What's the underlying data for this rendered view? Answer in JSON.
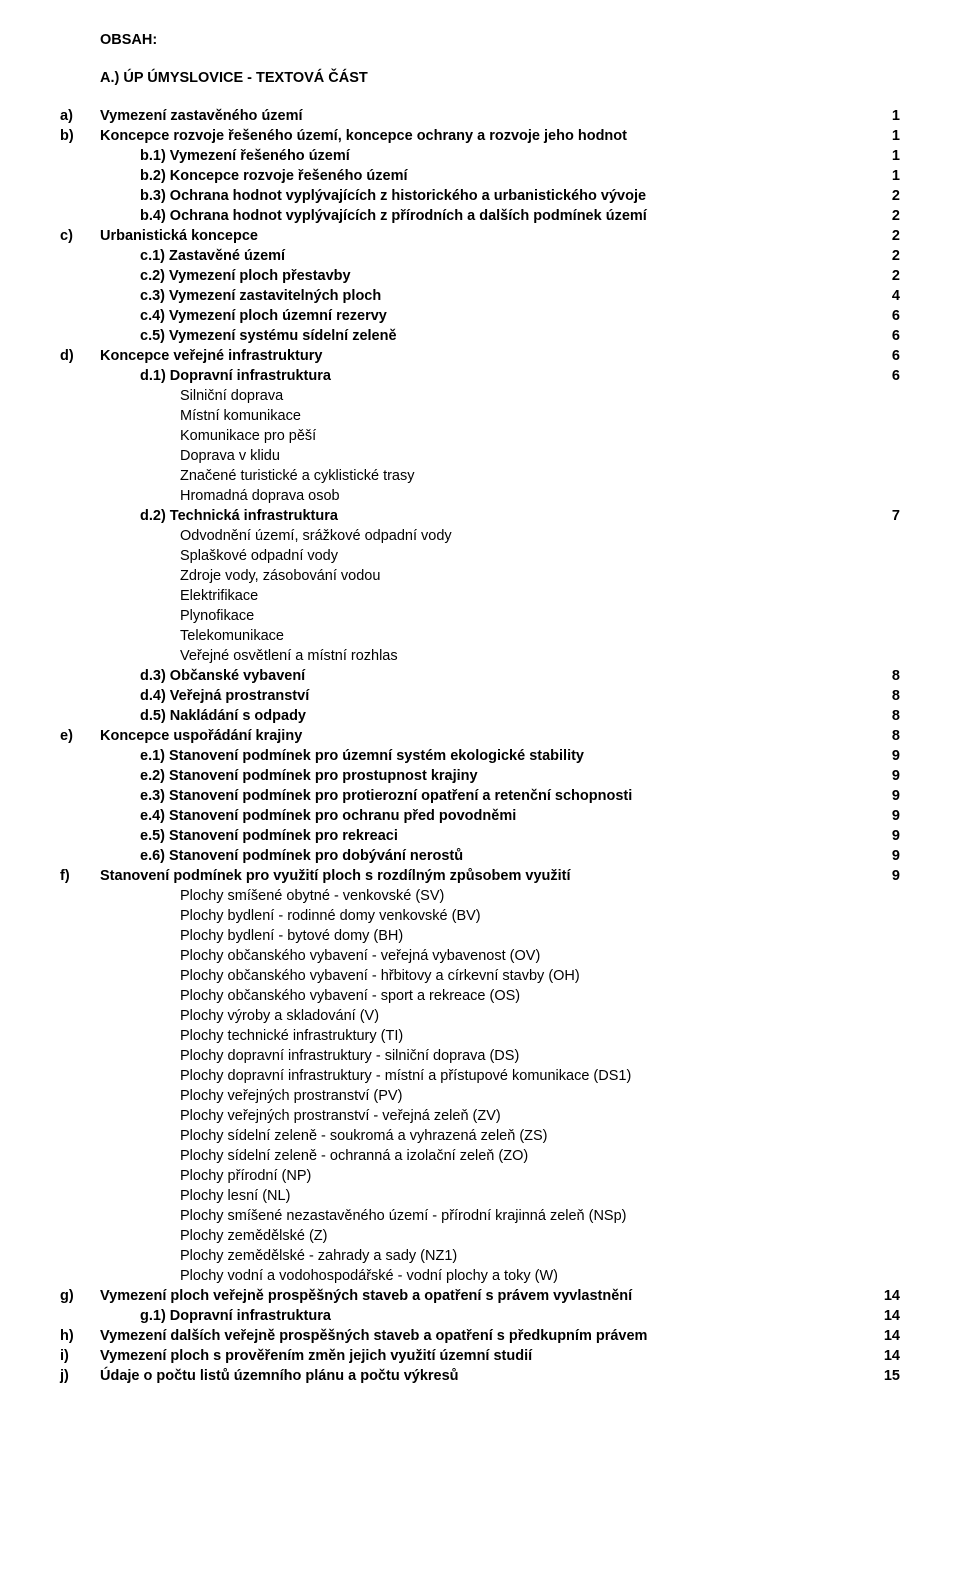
{
  "title": "OBSAH:",
  "section_head": "A.) ÚP ÚMYSLOVICE - TEXTOVÁ ČÁST",
  "rows": [
    {
      "letter": "a)",
      "label": "Vymezení zastavěného území",
      "pg": "1",
      "bold": true
    },
    {
      "letter": "b)",
      "label": "Koncepce rozvoje řešeného území, koncepce ochrany a rozvoje jeho hodnot",
      "pg": "1",
      "bold": true
    },
    {
      "letter": "",
      "label": "b.1) Vymezení řešeného území",
      "pg": "1",
      "bold": true,
      "indent": 1
    },
    {
      "letter": "",
      "label": "b.2) Koncepce rozvoje řešeného území",
      "pg": "1",
      "bold": true,
      "indent": 1
    },
    {
      "letter": "",
      "label": "b.3) Ochrana hodnot vyplývajících z historického a urbanistického vývoje",
      "pg": "2",
      "bold": true,
      "indent": 1
    },
    {
      "letter": "",
      "label": "b.4) Ochrana hodnot vyplývajících z přírodních a dalších podmínek území",
      "pg": "2",
      "bold": true,
      "indent": 1
    },
    {
      "letter": "c)",
      "label": "Urbanistická koncepce",
      "pg": "2",
      "bold": true
    },
    {
      "letter": "",
      "label": "c.1) Zastavěné území",
      "pg": "2",
      "bold": true,
      "indent": 1
    },
    {
      "letter": "",
      "label": "c.2) Vymezení ploch přestavby",
      "pg": "2",
      "bold": true,
      "indent": 1
    },
    {
      "letter": "",
      "label": "c.3) Vymezení zastavitelných ploch",
      "pg": "4",
      "bold": true,
      "indent": 1
    },
    {
      "letter": "",
      "label": "c.4) Vymezení ploch územní rezervy",
      "pg": "6",
      "bold": true,
      "indent": 1
    },
    {
      "letter": "",
      "label": "c.5) Vymezení systému sídelní zeleně",
      "pg": "6",
      "bold": true,
      "indent": 1
    },
    {
      "letter": "d)",
      "label": "Koncepce veřejné infrastruktury",
      "pg": "6",
      "bold": true
    },
    {
      "letter": "",
      "label": "d.1) Dopravní infrastruktura",
      "pg": "6",
      "bold": true,
      "indent": 1
    },
    {
      "letter": "",
      "label": "Silniční doprava",
      "pg": "",
      "bold": false,
      "indent": 2
    },
    {
      "letter": "",
      "label": "Místní komunikace",
      "pg": "",
      "bold": false,
      "indent": 2
    },
    {
      "letter": "",
      "label": "Komunikace pro pěší",
      "pg": "",
      "bold": false,
      "indent": 2
    },
    {
      "letter": "",
      "label": "Doprava v klidu",
      "pg": "",
      "bold": false,
      "indent": 2
    },
    {
      "letter": "",
      "label": "Značené turistické a cyklistické trasy",
      "pg": "",
      "bold": false,
      "indent": 2
    },
    {
      "letter": "",
      "label": "Hromadná doprava osob",
      "pg": "",
      "bold": false,
      "indent": 2
    },
    {
      "letter": "",
      "label": "d.2) Technická infrastruktura",
      "pg": "7",
      "bold": true,
      "indent": 1
    },
    {
      "letter": "",
      "label": "Odvodnění území, srážkové odpadní vody",
      "pg": "",
      "bold": false,
      "indent": 2
    },
    {
      "letter": "",
      "label": "Splaškové odpadní vody",
      "pg": "",
      "bold": false,
      "indent": 2
    },
    {
      "letter": "",
      "label": "Zdroje vody, zásobování vodou",
      "pg": "",
      "bold": false,
      "indent": 2
    },
    {
      "letter": "",
      "label": "Elektrifikace",
      "pg": "",
      "bold": false,
      "indent": 2
    },
    {
      "letter": "",
      "label": "Plynofikace",
      "pg": "",
      "bold": false,
      "indent": 2
    },
    {
      "letter": "",
      "label": "Telekomunikace",
      "pg": "",
      "bold": false,
      "indent": 2
    },
    {
      "letter": "",
      "label": "Veřejné osvětlení a místní rozhlas",
      "pg": "",
      "bold": false,
      "indent": 2
    },
    {
      "letter": "",
      "label": "d.3) Občanské vybavení",
      "pg": "8",
      "bold": true,
      "indent": 1
    },
    {
      "letter": "",
      "label": "d.4) Veřejná prostranství",
      "pg": "8",
      "bold": true,
      "indent": 1
    },
    {
      "letter": "",
      "label": "d.5) Nakládání s odpady",
      "pg": "8",
      "bold": true,
      "indent": 1
    },
    {
      "letter": "e)",
      "label": "Koncepce uspořádání krajiny",
      "pg": "8",
      "bold": true
    },
    {
      "letter": "",
      "label": "e.1) Stanovení podmínek pro územní systém ekologické stability",
      "pg": "9",
      "bold": true,
      "indent": 1
    },
    {
      "letter": "",
      "label": "e.2) Stanovení podmínek pro prostupnost krajiny",
      "pg": "9",
      "bold": true,
      "indent": 1
    },
    {
      "letter": "",
      "label": "e.3) Stanovení podmínek pro protierozní opatření a retenční schopnosti",
      "pg": "9",
      "bold": true,
      "indent": 1
    },
    {
      "letter": "",
      "label": "e.4) Stanovení podmínek pro ochranu před povodněmi",
      "pg": "9",
      "bold": true,
      "indent": 1
    },
    {
      "letter": "",
      "label": "e.5) Stanovení podmínek pro rekreaci",
      "pg": "9",
      "bold": true,
      "indent": 1
    },
    {
      "letter": "",
      "label": "e.6) Stanovení podmínek pro dobývání nerostů",
      "pg": "9",
      "bold": true,
      "indent": 1
    },
    {
      "letter": "f)",
      "label": "Stanovení podmínek pro využití ploch s rozdílným způsobem využití",
      "pg": "9",
      "bold": true
    },
    {
      "letter": "",
      "label": "Plochy smíšené obytné - venkovské (SV)",
      "pg": "",
      "bold": false,
      "indent": 2
    },
    {
      "letter": "",
      "label": "Plochy bydlení - rodinné domy venkovské (BV)",
      "pg": "",
      "bold": false,
      "indent": 2
    },
    {
      "letter": "",
      "label": "Plochy bydlení - bytové domy (BH)",
      "pg": "",
      "bold": false,
      "indent": 2
    },
    {
      "letter": "",
      "label": "Plochy občanského vybavení - veřejná vybavenost (OV)",
      "pg": "",
      "bold": false,
      "indent": 2
    },
    {
      "letter": "",
      "label": "Plochy občanského vybavení - hřbitovy a církevní stavby (OH)",
      "pg": "",
      "bold": false,
      "indent": 2
    },
    {
      "letter": "",
      "label": "Plochy občanského vybavení - sport a rekreace (OS)",
      "pg": "",
      "bold": false,
      "indent": 2
    },
    {
      "letter": "",
      "label": "Plochy výroby a skladování (V)",
      "pg": "",
      "bold": false,
      "indent": 2
    },
    {
      "letter": "",
      "label": "Plochy technické infrastruktury (TI)",
      "pg": "",
      "bold": false,
      "indent": 2
    },
    {
      "letter": "",
      "label": "Plochy dopravní infrastruktury - silniční doprava (DS)",
      "pg": "",
      "bold": false,
      "indent": 2
    },
    {
      "letter": "",
      "label": "Plochy dopravní infrastruktury - místní a přístupové komunikace (DS1)",
      "pg": "",
      "bold": false,
      "indent": 2
    },
    {
      "letter": "",
      "label": "Plochy veřejných prostranství (PV)",
      "pg": "",
      "bold": false,
      "indent": 2
    },
    {
      "letter": "",
      "label": "Plochy veřejných prostranství - veřejná zeleň (ZV)",
      "pg": "",
      "bold": false,
      "indent": 2
    },
    {
      "letter": "",
      "label": "Plochy sídelní zeleně - soukromá a vyhrazená zeleň (ZS)",
      "pg": "",
      "bold": false,
      "indent": 2
    },
    {
      "letter": "",
      "label": "Plochy sídelní zeleně - ochranná a izolační zeleň (ZO)",
      "pg": "",
      "bold": false,
      "indent": 2
    },
    {
      "letter": "",
      "label": "Plochy přírodní (NP)",
      "pg": "",
      "bold": false,
      "indent": 2
    },
    {
      "letter": "",
      "label": "Plochy lesní (NL)",
      "pg": "",
      "bold": false,
      "indent": 2
    },
    {
      "letter": "",
      "label": "Plochy smíšené nezastavěného území - přírodní krajinná zeleň (NSp)",
      "pg": "",
      "bold": false,
      "indent": 2
    },
    {
      "letter": "",
      "label": "Plochy zemědělské (Z)",
      "pg": "",
      "bold": false,
      "indent": 2
    },
    {
      "letter": "",
      "label": "Plochy zemědělské - zahrady a sady (NZ1)",
      "pg": "",
      "bold": false,
      "indent": 2
    },
    {
      "letter": "",
      "label": "Plochy vodní a vodohospodářské - vodní plochy a toky (W)",
      "pg": "",
      "bold": false,
      "indent": 2
    },
    {
      "letter": "g)",
      "label": "Vymezení ploch veřejně prospěšných staveb a opatření s právem vyvlastnění",
      "pg": "14",
      "bold": true
    },
    {
      "letter": "",
      "label": "g.1) Dopravní infrastruktura",
      "pg": "14",
      "bold": true,
      "indent": 1
    },
    {
      "letter": "h)",
      "label": "Vymezení dalších veřejně prospěšných staveb a opatření s předkupním právem",
      "pg": "14",
      "bold": true
    },
    {
      "letter": "i)",
      "label": "Vymezení ploch s prověřením změn jejich využití územní studií",
      "pg": "14",
      "bold": true
    },
    {
      "letter": "j)",
      "label": "Údaje o počtu listů územního plánu a počtu výkresů",
      "pg": "15",
      "bold": true
    }
  ]
}
